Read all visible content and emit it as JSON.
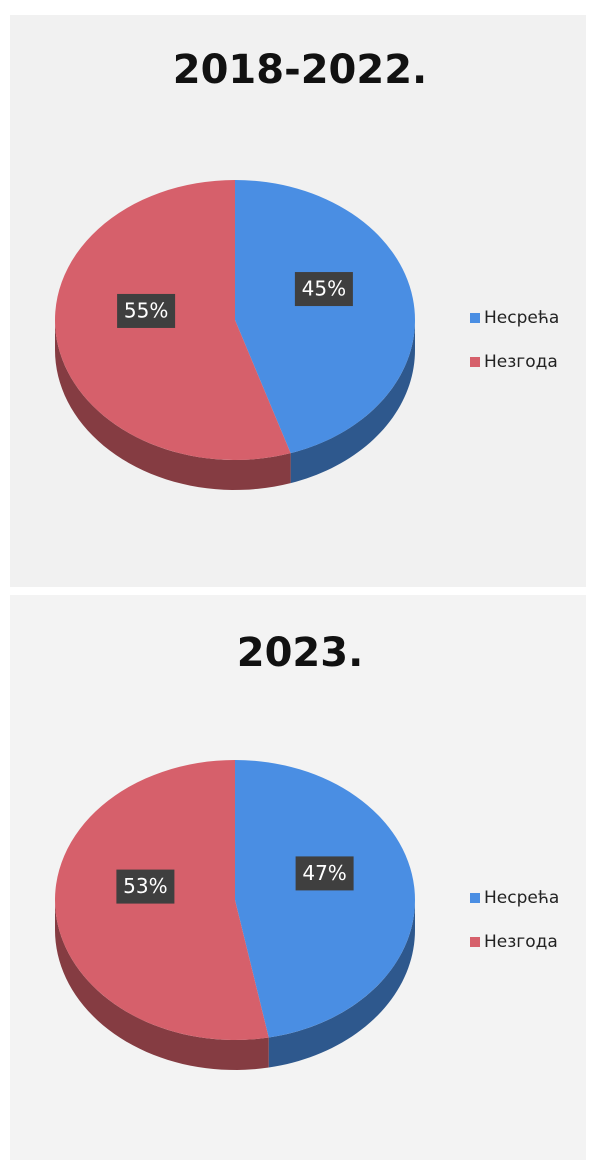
{
  "chart_data": [
    {
      "type": "pie",
      "title": "2018-2022.",
      "categories": [
        "Несрећа",
        "Незгода"
      ],
      "values": [
        45,
        55
      ],
      "value_labels": [
        "45%",
        "55%"
      ],
      "colors": [
        "#4a8ee3",
        "#d6606b"
      ],
      "legend": "right"
    },
    {
      "type": "pie",
      "title": "2023.",
      "categories": [
        "Несрећа",
        "Незгода"
      ],
      "values": [
        47,
        53
      ],
      "value_labels": [
        "47%",
        "53%"
      ],
      "colors": [
        "#4a8ee3",
        "#d6606b"
      ],
      "legend": "right"
    }
  ]
}
